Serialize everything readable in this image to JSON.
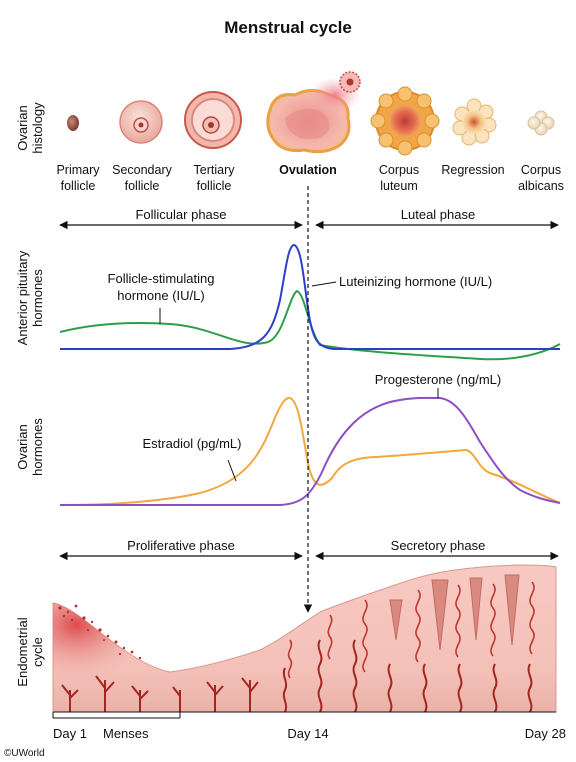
{
  "title": "Menstrual cycle",
  "rows": {
    "ovarian_histology": [
      "Ovarian",
      "histology"
    ],
    "anterior_pituitary": [
      "Anterior pituitary",
      "hormones"
    ],
    "ovarian_hormones": [
      "Ovarian",
      "hormones"
    ],
    "endometrial": [
      "Endometrial",
      "cycle"
    ]
  },
  "follicle_stages": [
    {
      "line1": "Primary",
      "line2": "follicle"
    },
    {
      "line1": "Secondary",
      "line2": "follicle"
    },
    {
      "line1": "Tertiary",
      "line2": "follicle"
    },
    {
      "line1": "Ovulation",
      "line2": ""
    },
    {
      "line1": "Corpus",
      "line2": "luteum"
    },
    {
      "line1": "Regression",
      "line2": ""
    },
    {
      "line1": "Corpus",
      "line2": "albicans"
    }
  ],
  "phases": {
    "ovarian": [
      "Follicular phase",
      "Luteal phase"
    ],
    "uterine": [
      "Proliferative phase",
      "Secretory phase"
    ]
  },
  "hormones": {
    "fsh": [
      "Follicle-stimulating",
      "hormone (IU/L)"
    ],
    "lh": "Luteinizing hormone (IU/L)",
    "estradiol": "Estradiol (pg/mL)",
    "progesterone": "Progesterone (ng/mL)"
  },
  "axis": {
    "day1": "Day 1",
    "menses": "Menses",
    "day14": "Day 14",
    "day28": "Day 28"
  },
  "colors": {
    "fsh": "#2e9e4a",
    "lh": "#2b3fc9",
    "estradiol": "#f2a83b",
    "progesterone": "#8a4fc4",
    "endometrium": "#f3c3bd",
    "vessel": "#a3271f"
  },
  "credit": "©UWorld"
}
